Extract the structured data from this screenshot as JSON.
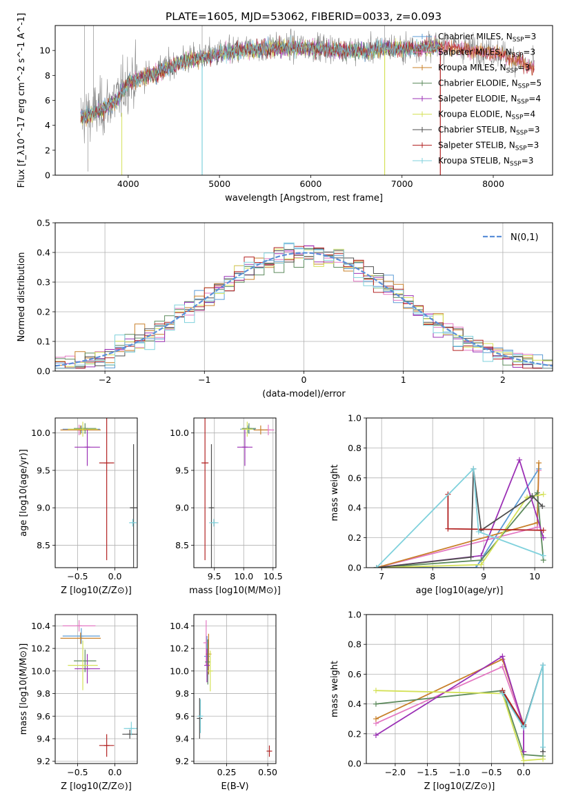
{
  "figure_title": "PLATE=1605, MJD=53062, FIBERID=0033, z=0.093",
  "legend_spectrum": [
    {
      "label": "Chabrier MILES, N",
      "sub": "SSP",
      "suffix": "=3",
      "color": "#5b9bd5"
    },
    {
      "label": "Salpeter MILES, N",
      "sub": "SSP",
      "suffix": "=3",
      "color": "#e377c2"
    },
    {
      "label": "Kroupa MILES, N",
      "sub": "SSP",
      "suffix": "=3",
      "color": "#c8802a"
    },
    {
      "label": "Chabrier ELODIE, N",
      "sub": "SSP",
      "suffix": "=5",
      "color": "#5c8a5c"
    },
    {
      "label": "Salpeter ELODIE, N",
      "sub": "SSP",
      "suffix": "=4",
      "color": "#9b30b5"
    },
    {
      "label": "Kroupa ELODIE, N",
      "sub": "SSP",
      "suffix": "=4",
      "color": "#d4e157"
    },
    {
      "label": "Chabrier STELIB, N",
      "sub": "SSP",
      "suffix": "=3",
      "color": "#4d4d4d"
    },
    {
      "label": "Salpeter STELIB, N",
      "sub": "SSP",
      "suffix": "=3",
      "color": "#b22222"
    },
    {
      "label": "Kroupa STELIB, N",
      "sub": "SSP",
      "suffix": "=3",
      "color": "#7fd1dc"
    }
  ],
  "colors": {
    "data_gray": "#808080",
    "gaussian": "#5b8fd8",
    "grid": "#b0b0b0"
  },
  "chart_data": [
    {
      "id": "spectrum",
      "type": "line",
      "xlabel": "wavelength [Angstrom, rest frame]",
      "ylabel": "Flux [f_λ10^-17 erg cm^-2 s^-1 A^-1]",
      "xlim": [
        3200,
        8650
      ],
      "ylim": [
        0,
        12
      ],
      "xticks": [
        4000,
        5000,
        6000,
        7000,
        8000
      ],
      "yticks": [
        0,
        2,
        4,
        6,
        8,
        10
      ],
      "continuum_x": [
        3500,
        3700,
        3900,
        4000,
        4200,
        4400,
        4600,
        4800,
        5000,
        5200,
        5400,
        5600,
        5800,
        6000,
        6200,
        6400,
        6600,
        6800,
        7000,
        7200,
        7400,
        7600,
        7800,
        8000,
        8200,
        8400
      ],
      "continuum_y": [
        4.7,
        5.3,
        6.3,
        7.6,
        8.0,
        8.6,
        9.2,
        9.5,
        9.8,
        10.0,
        10.2,
        10.3,
        10.3,
        10.3,
        10.2,
        10.1,
        10.0,
        10.3,
        10.2,
        10.3,
        10.4,
        10.3,
        10.1,
        9.9,
        9.5,
        8.8
      ],
      "grid": false
    },
    {
      "id": "residual_hist",
      "type": "line",
      "xlabel": "(data-model)/error",
      "ylabel": "Normed distribution",
      "xlim": [
        -2.5,
        2.5
      ],
      "ylim": [
        0,
        0.5
      ],
      "xticks": [
        -2,
        -1,
        0,
        1,
        2
      ],
      "yticks": [
        0.0,
        0.1,
        0.2,
        0.3,
        0.4,
        0.5
      ],
      "bin_width": 0.1,
      "legend": "N(0,1)",
      "grid": true
    },
    {
      "id": "age_vs_Z",
      "type": "scatter",
      "xlabel": "Z [log10(Z/Z⊙)]",
      "ylabel": "age  [log10(age/yr)]",
      "xlim": [
        -0.8,
        0.3
      ],
      "ylim": [
        8.2,
        10.2
      ],
      "xticks": [
        -0.5,
        0.0
      ],
      "yticks": [
        8.5,
        9.0,
        9.5,
        10.0
      ],
      "points": [
        {
          "c": 0,
          "x": -0.45,
          "y": 10.05,
          "xe": 0.25,
          "ye": 0.05
        },
        {
          "c": 1,
          "x": -0.48,
          "y": 10.04,
          "xe": 0.22,
          "ye": 0.07
        },
        {
          "c": 2,
          "x": -0.46,
          "y": 10.04,
          "xe": 0.27,
          "ye": 0.06
        },
        {
          "c": 3,
          "x": -0.4,
          "y": 10.06,
          "xe": 0.15,
          "ye": 0.07
        },
        {
          "c": 4,
          "x": -0.37,
          "y": 9.81,
          "xe": 0.17,
          "ye": 0.25
        },
        {
          "c": 5,
          "x": -0.43,
          "y": 10.05,
          "xe": 0.2,
          "ye": 0.1
        },
        {
          "c": 6,
          "x": 0.25,
          "y": 9.0,
          "xe": 0.05,
          "ye": 0.85
        },
        {
          "c": 7,
          "x": -0.11,
          "y": 9.6,
          "xe": 0.1,
          "ye": 1.3
        },
        {
          "c": 8,
          "x": 0.24,
          "y": 8.8,
          "xe": 0.05,
          "ye": 0.05
        }
      ],
      "grid": true
    },
    {
      "id": "age_vs_mass",
      "type": "scatter",
      "xlabel": "mass [log10(M/M⊙)]",
      "ylabel": "",
      "xlim": [
        9.15,
        10.55
      ],
      "ylim": [
        8.2,
        10.2
      ],
      "xticks": [
        9.5,
        10.0,
        10.5
      ],
      "yticks": [
        8.5,
        9.0,
        9.5,
        10.0
      ],
      "points": [
        {
          "c": 0,
          "x": 10.07,
          "y": 10.05,
          "xe": 0.13,
          "ye": 0.05
        },
        {
          "c": 1,
          "x": 10.42,
          "y": 10.04,
          "xe": 0.1,
          "ye": 0.07
        },
        {
          "c": 2,
          "x": 10.29,
          "y": 10.04,
          "xe": 0.12,
          "ye": 0.06
        },
        {
          "c": 3,
          "x": 10.09,
          "y": 10.06,
          "xe": 0.12,
          "ye": 0.07
        },
        {
          "c": 4,
          "x": 10.02,
          "y": 9.81,
          "xe": 0.13,
          "ye": 0.25
        },
        {
          "c": 5,
          "x": 10.06,
          "y": 10.05,
          "xe": 0.1,
          "ye": 0.1
        },
        {
          "c": 6,
          "x": 9.45,
          "y": 9.0,
          "xe": 0.02,
          "ye": 0.85
        },
        {
          "c": 7,
          "x": 9.34,
          "y": 9.6,
          "xe": 0.06,
          "ye": 1.3
        },
        {
          "c": 8,
          "x": 9.49,
          "y": 8.8,
          "xe": 0.08,
          "ye": 0.05
        }
      ],
      "grid": true
    },
    {
      "id": "weight_vs_age",
      "type": "line",
      "xlabel": "age  [log10(age/yr)]",
      "ylabel": "mass weight",
      "xlim": [
        6.7,
        10.35
      ],
      "ylim": [
        0,
        1
      ],
      "xticks": [
        7,
        8,
        9,
        10
      ],
      "yticks": [
        0.0,
        0.2,
        0.4,
        0.6,
        0.8,
        1.0
      ],
      "series": [
        {
          "c": 0,
          "x": [
            6.9,
            8.85,
            10.08
          ],
          "y": [
            0.0,
            0.0,
            0.66
          ]
        },
        {
          "c": 1,
          "x": [
            6.9,
            10.05,
            10.08
          ],
          "y": [
            0.0,
            0.27,
            0.65
          ]
        },
        {
          "c": 2,
          "x": [
            6.9,
            10.05,
            10.08
          ],
          "y": [
            0.0,
            0.3,
            0.7
          ]
        },
        {
          "c": 3,
          "x": [
            6.9,
            8.95,
            10.05,
            10.17
          ],
          "y": [
            0.0,
            0.05,
            0.5,
            0.05
          ]
        },
        {
          "c": 4,
          "x": [
            6.9,
            8.95,
            9.7,
            10.17
          ],
          "y": [
            0.0,
            0.08,
            0.72,
            0.2
          ]
        },
        {
          "c": 5,
          "x": [
            6.9,
            8.95,
            9.85,
            10.17
          ],
          "y": [
            0.0,
            0.02,
            0.47,
            0.49
          ]
        },
        {
          "c": 6,
          "x": [
            6.9,
            8.75,
            8.8,
            8.95,
            9.95,
            10.15
          ],
          "y": [
            0.0,
            0.07,
            0.66,
            0.25,
            0.48,
            0.41
          ]
        },
        {
          "c": 7,
          "x": [
            8.3,
            8.3,
            10.17
          ],
          "y": [
            0.49,
            0.26,
            0.25
          ]
        },
        {
          "c": 8,
          "x": [
            6.9,
            8.8,
            8.9,
            10.17
          ],
          "y": [
            0.0,
            0.66,
            0.24,
            0.08
          ]
        }
      ],
      "grid": true
    },
    {
      "id": "mass_vs_Z",
      "type": "scatter",
      "xlabel": "Z [log10(Z/Z⊙)]",
      "ylabel": "mass [log10(M/M⊙)]",
      "xlim": [
        -0.8,
        0.3
      ],
      "ylim": [
        9.18,
        10.5
      ],
      "xticks": [
        -0.5,
        0.0
      ],
      "yticks": [
        9.2,
        9.4,
        9.6,
        9.8,
        10.0,
        10.2,
        10.4
      ],
      "points": [
        {
          "c": 0,
          "x": -0.45,
          "y": 10.31,
          "xe": 0.25,
          "ye": 0.07
        },
        {
          "c": 1,
          "x": -0.48,
          "y": 10.4,
          "xe": 0.22,
          "ye": 0.05
        },
        {
          "c": 2,
          "x": -0.46,
          "y": 10.29,
          "xe": 0.27,
          "ye": 0.05
        },
        {
          "c": 3,
          "x": -0.4,
          "y": 10.09,
          "xe": 0.15,
          "ye": 0.1
        },
        {
          "c": 4,
          "x": -0.37,
          "y": 10.02,
          "xe": 0.17,
          "ye": 0.13
        },
        {
          "c": 5,
          "x": -0.43,
          "y": 10.05,
          "xe": 0.2,
          "ye": 0.22
        },
        {
          "c": 6,
          "x": 0.2,
          "y": 9.44,
          "xe": 0.1,
          "ye": 0.04
        },
        {
          "c": 7,
          "x": -0.11,
          "y": 9.34,
          "xe": 0.1,
          "ye": 0.1
        },
        {
          "c": 8,
          "x": 0.22,
          "y": 9.49,
          "xe": 0.1,
          "ye": 0.06
        }
      ],
      "grid": true
    },
    {
      "id": "mass_vs_EBV",
      "type": "scatter",
      "xlabel": "E(B-V)",
      "ylabel": "",
      "xlim": [
        0.05,
        0.55
      ],
      "ylim": [
        9.18,
        10.5
      ],
      "xticks": [
        0.25,
        0.5
      ],
      "yticks": [
        9.2,
        9.4,
        9.6,
        9.8,
        10.0,
        10.2,
        10.4
      ],
      "points": [
        {
          "c": 0,
          "x": 0.13,
          "y": 10.13,
          "xe": 0.0,
          "ye": 0.18
        },
        {
          "c": 1,
          "x": 0.125,
          "y": 10.25,
          "xe": 0.0,
          "ye": 0.2
        },
        {
          "c": 2,
          "x": 0.14,
          "y": 10.15,
          "xe": 0.0,
          "ye": 0.18
        },
        {
          "c": 3,
          "x": 0.135,
          "y": 10.08,
          "xe": 0.0,
          "ye": 0.2
        },
        {
          "c": 4,
          "x": 0.13,
          "y": 10.05,
          "xe": 0.0,
          "ye": 0.15
        },
        {
          "c": 5,
          "x": 0.15,
          "y": 10.0,
          "xe": 0.0,
          "ye": 0.18
        },
        {
          "c": 6,
          "x": 0.085,
          "y": 9.58,
          "xe": 0.0,
          "ye": 0.18
        },
        {
          "c": 7,
          "x": 0.51,
          "y": 9.29,
          "xe": 0.0,
          "ye": 0.05
        },
        {
          "c": 8,
          "x": 0.09,
          "y": 9.6,
          "xe": 0.0,
          "ye": 0.15
        }
      ],
      "grid": true
    },
    {
      "id": "weight_vs_Z",
      "type": "line",
      "xlabel": "Z [log10(Z/Z⊙)]",
      "ylabel": "mass weight",
      "xlim": [
        -2.45,
        0.45
      ],
      "ylim": [
        0,
        1
      ],
      "xticks": [
        -2.0,
        -1.5,
        -1.0,
        -0.5,
        0.0
      ],
      "yticks": [
        0.0,
        0.2,
        0.4,
        0.6,
        0.8,
        1.0
      ],
      "series": [
        {
          "c": 0,
          "x": [
            -0.33,
            0.0,
            0.3
          ],
          "y": [
            0.49,
            0.25,
            0.66
          ]
        },
        {
          "c": 1,
          "x": [
            -2.3,
            -0.33,
            0.0,
            0.0
          ],
          "y": [
            0.27,
            0.65,
            0.25,
            0.08
          ]
        },
        {
          "c": 2,
          "x": [
            -2.3,
            -0.33,
            0.0
          ],
          "y": [
            0.3,
            0.7,
            0.26
          ]
        },
        {
          "c": 3,
          "x": [
            -2.3,
            -0.33,
            0.0,
            0.3
          ],
          "y": [
            0.4,
            0.49,
            0.06,
            0.05
          ]
        },
        {
          "c": 4,
          "x": [
            -2.3,
            -0.33,
            0.0,
            0.0
          ],
          "y": [
            0.19,
            0.72,
            0.25,
            0.08
          ]
        },
        {
          "c": 5,
          "x": [
            -2.3,
            -0.33,
            0.0,
            0.3
          ],
          "y": [
            0.49,
            0.47,
            0.02,
            0.03
          ]
        },
        {
          "c": 6,
          "x": [
            -0.33,
            0.0,
            0.3,
            0.3
          ],
          "y": [
            0.48,
            0.25,
            0.66,
            0.08
          ]
        },
        {
          "c": 7,
          "x": [
            -0.33,
            0.0
          ],
          "y": [
            0.49,
            0.26
          ]
        },
        {
          "c": 8,
          "x": [
            -0.33,
            0.0,
            0.3,
            0.3
          ],
          "y": [
            0.47,
            0.24,
            0.66,
            0.11
          ]
        }
      ],
      "grid": true
    }
  ]
}
